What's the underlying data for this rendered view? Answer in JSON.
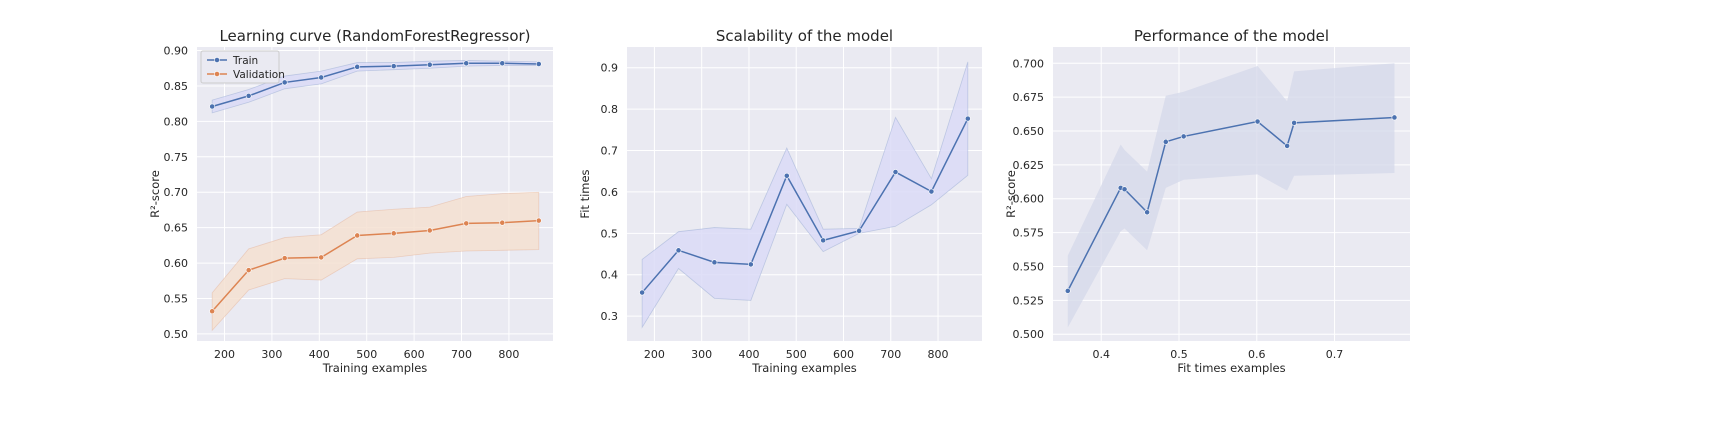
{
  "chart_data": [
    {
      "type": "line",
      "title": "Learning curve (RandomForestRegressor)",
      "xlabel": "Training examples",
      "ylabel": "R²-score",
      "xlim": [
        142,
        893
      ],
      "ylim": [
        0.49,
        0.905
      ],
      "xticks": [
        200,
        300,
        400,
        500,
        600,
        700,
        800
      ],
      "yticks": [
        0.5,
        0.55,
        0.6,
        0.65,
        0.7,
        0.75,
        0.8,
        0.85,
        0.9
      ],
      "ytick_decimals": 2,
      "grid": true,
      "legend": "upper-left",
      "x": [
        174,
        251,
        327,
        404,
        480,
        557,
        633,
        710,
        786,
        863
      ],
      "series": [
        {
          "name": "Train",
          "color": "#4c72b0",
          "values": [
            0.821,
            0.836,
            0.855,
            0.862,
            0.877,
            0.878,
            0.88,
            0.882,
            0.882,
            0.881
          ],
          "band_low": [
            0.812,
            0.827,
            0.846,
            0.853,
            0.871,
            0.873,
            0.875,
            0.878,
            0.879,
            0.879
          ],
          "band_high": [
            0.83,
            0.845,
            0.864,
            0.871,
            0.883,
            0.883,
            0.885,
            0.886,
            0.885,
            0.884
          ]
        },
        {
          "name": "Validation",
          "color": "#dd8452",
          "values": [
            0.532,
            0.59,
            0.607,
            0.608,
            0.639,
            0.642,
            0.646,
            0.656,
            0.657,
            0.66
          ],
          "band_low": [
            0.505,
            0.562,
            0.578,
            0.576,
            0.606,
            0.608,
            0.614,
            0.617,
            0.618,
            0.619
          ],
          "band_high": [
            0.558,
            0.62,
            0.636,
            0.64,
            0.672,
            0.676,
            0.679,
            0.694,
            0.698,
            0.7
          ]
        }
      ]
    },
    {
      "type": "line",
      "title": "Scalability of the model",
      "xlabel": "Training examples",
      "ylabel": "Fit times",
      "xlim": [
        142,
        893
      ],
      "ylim": [
        0.24,
        0.95
      ],
      "xticks": [
        200,
        300,
        400,
        500,
        600,
        700,
        800
      ],
      "yticks": [
        0.3,
        0.4,
        0.5,
        0.6,
        0.7,
        0.8,
        0.9
      ],
      "ytick_decimals": 1,
      "grid": true,
      "x": [
        174,
        251,
        327,
        404,
        480,
        557,
        633,
        710,
        786,
        863
      ],
      "series": [
        {
          "name": "",
          "color": "#4c72b0",
          "values": [
            0.357,
            0.459,
            0.43,
            0.425,
            0.639,
            0.483,
            0.506,
            0.648,
            0.601,
            0.777
          ],
          "band_low": [
            0.273,
            0.415,
            0.343,
            0.338,
            0.57,
            0.456,
            0.5,
            0.517,
            0.569,
            0.64
          ],
          "band_high": [
            0.437,
            0.504,
            0.514,
            0.51,
            0.706,
            0.51,
            0.512,
            0.78,
            0.632,
            0.914
          ]
        }
      ]
    },
    {
      "type": "line",
      "title": "Performance of the model",
      "xlabel": "Fit times examples",
      "ylabel": "R²-score",
      "xlim": [
        0.338,
        0.797
      ],
      "ylim": [
        0.495,
        0.712
      ],
      "xticks": [
        0.4,
        0.5,
        0.6,
        0.7
      ],
      "yticks": [
        0.5,
        0.525,
        0.55,
        0.575,
        0.6,
        0.625,
        0.65,
        0.675,
        0.7
      ],
      "ytick_decimals": 3,
      "grid": true,
      "x": [
        0.357,
        0.425,
        0.43,
        0.459,
        0.483,
        0.506,
        0.601,
        0.639,
        0.648,
        0.777
      ],
      "series": [
        {
          "name": "",
          "color": "#4c72b0",
          "values": [
            0.532,
            0.608,
            0.607,
            0.59,
            0.642,
            0.646,
            0.657,
            0.639,
            0.656,
            0.66
          ],
          "band_low": [
            0.505,
            0.576,
            0.578,
            0.562,
            0.608,
            0.614,
            0.618,
            0.606,
            0.617,
            0.619
          ],
          "band_high": [
            0.558,
            0.64,
            0.636,
            0.62,
            0.676,
            0.679,
            0.698,
            0.672,
            0.694,
            0.7
          ]
        }
      ]
    }
  ]
}
